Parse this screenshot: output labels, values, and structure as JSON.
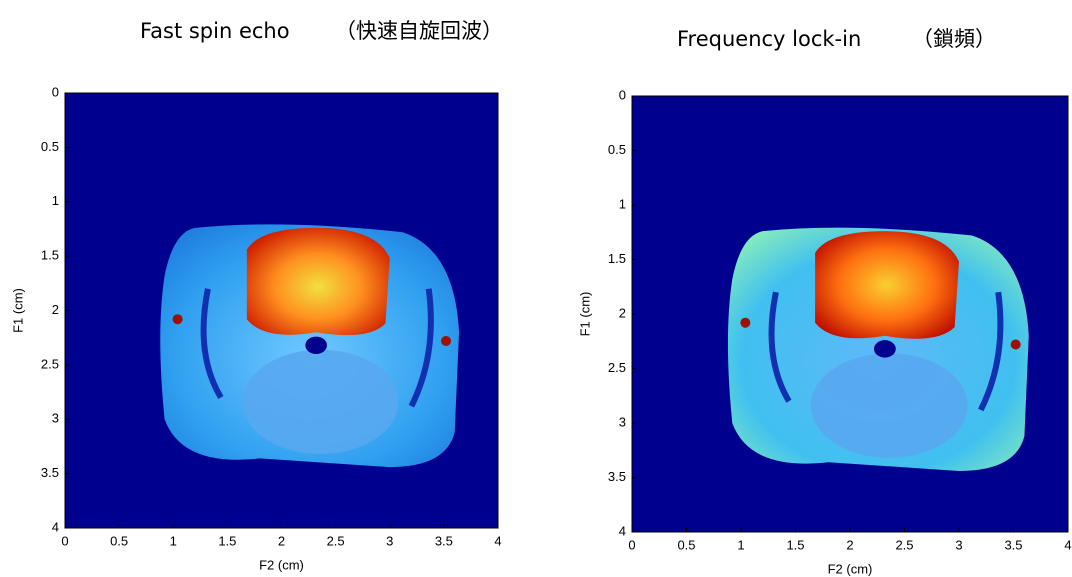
{
  "panels": [
    {
      "title": "Fast spin echo",
      "subtitle": "（快速自旋回波）",
      "x_label": "F2 (cm)",
      "y_label": "F1 (cm)",
      "xticks": [
        0,
        0.5,
        1,
        1.5,
        2,
        2.5,
        3,
        3.5,
        4
      ],
      "yticks": [
        0,
        0.5,
        1,
        1.5,
        2,
        2.5,
        3,
        3.5,
        4
      ]
    },
    {
      "title": "Frequency lock-in",
      "subtitle": "（鎖頻）",
      "x_label": "F2 (cm)",
      "y_label": "F1 (cm)",
      "xticks": [
        0,
        0.5,
        1,
        1.5,
        2,
        2.5,
        3,
        3.5,
        4
      ],
      "yticks": [
        0,
        0.5,
        1,
        1.5,
        2,
        2.5,
        3,
        3.5,
        4
      ]
    }
  ]
}
